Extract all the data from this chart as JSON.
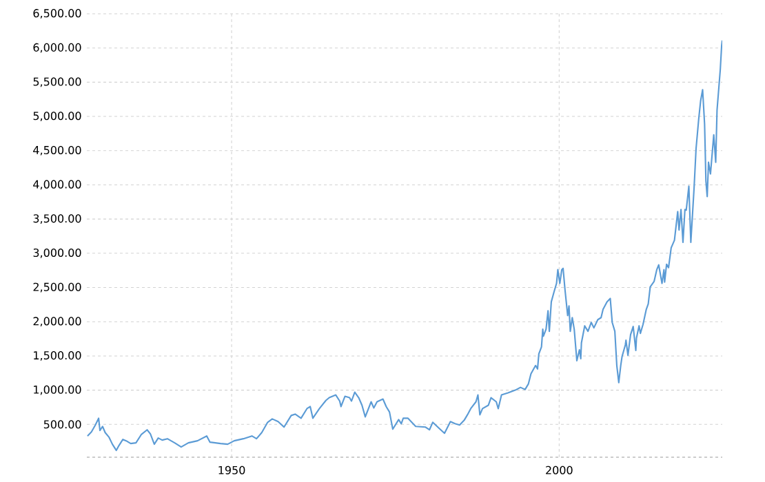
{
  "chart_data": {
    "type": "line",
    "xlim": [
      1927.9,
      2024.9
    ],
    "ylim": [
      20,
      6500
    ],
    "xticks": [
      1950,
      2000
    ],
    "yticks": [
      {
        "value": 500,
        "label": "500.00"
      },
      {
        "value": 1000,
        "label": "1,000.00"
      },
      {
        "value": 1500,
        "label": "1,500.00"
      },
      {
        "value": 2000,
        "label": "2,000.00"
      },
      {
        "value": 2500,
        "label": "2,500.00"
      },
      {
        "value": 3000,
        "label": "3,000.00"
      },
      {
        "value": 3500,
        "label": "3,500.00"
      },
      {
        "value": 4000,
        "label": "4,000.00"
      },
      {
        "value": 4500,
        "label": "4,500.00"
      },
      {
        "value": 5000,
        "label": "5,000.00"
      },
      {
        "value": 5500,
        "label": "5,500.00"
      },
      {
        "value": 6000,
        "label": "6,000.00"
      },
      {
        "value": 6500,
        "label": "6,500.00"
      }
    ],
    "grid": true,
    "marker": "none",
    "line_style": "solid",
    "series": [
      {
        "color": "#5b9bd5",
        "x": [
          1928.0,
          1928.6,
          1929.2,
          1929.7,
          1929.9,
          1930.3,
          1930.7,
          1931.3,
          1931.8,
          1932.4,
          1932.8,
          1933.4,
          1933.9,
          1934.6,
          1935.4,
          1936.2,
          1937.1,
          1937.6,
          1938.2,
          1938.8,
          1939.4,
          1940.2,
          1941.3,
          1942.3,
          1943.4,
          1944.8,
          1946.2,
          1946.7,
          1948.3,
          1949.4,
          1950.4,
          1951.8,
          1953.1,
          1953.8,
          1954.6,
          1955.5,
          1956.2,
          1957.1,
          1958.0,
          1959.1,
          1959.7,
          1960.6,
          1961.5,
          1962.0,
          1962.4,
          1963.4,
          1964.4,
          1964.9,
          1965.9,
          1966.5,
          1966.7,
          1967.3,
          1968.0,
          1968.3,
          1968.8,
          1969.4,
          1969.9,
          1970.4,
          1971.3,
          1971.7,
          1972.2,
          1973.1,
          1973.6,
          1974.1,
          1974.6,
          1975.5,
          1975.9,
          1976.2,
          1976.9,
          1978.1,
          1979.6,
          1980.2,
          1980.7,
          1981.7,
          1982.5,
          1983.4,
          1984.1,
          1984.8,
          1985.5,
          1986.0,
          1986.5,
          1987.3,
          1987.6,
          1987.9,
          1988.3,
          1989.2,
          1989.6,
          1990.4,
          1990.7,
          1991.2,
          1992.2,
          1993.3,
          1994.1,
          1994.8,
          1995.3,
          1995.7,
          1996.4,
          1996.7,
          1996.9,
          1997.3,
          1997.5,
          1997.6,
          1998.0,
          1998.3,
          1998.5,
          1998.8,
          1999.2,
          1999.6,
          1999.8,
          2000.1,
          2000.4,
          2000.6,
          2000.9,
          2001.3,
          2001.5,
          2001.7,
          2002.0,
          2002.3,
          2002.7,
          2003.1,
          2003.3,
          2003.4,
          2003.9,
          2004.4,
          2004.9,
          2005.3,
          2005.9,
          2006.4,
          2006.7,
          2007.3,
          2007.8,
          2008.1,
          2008.5,
          2008.8,
          2009.1,
          2009.4,
          2009.6,
          2010.1,
          2010.2,
          2010.5,
          2010.9,
          2011.3,
          2011.7,
          2011.8,
          2012.2,
          2012.4,
          2012.8,
          2013.3,
          2013.6,
          2013.9,
          2014.5,
          2014.9,
          2015.2,
          2015.7,
          2016.0,
          2016.1,
          2016.4,
          2016.7,
          2017.1,
          2017.6,
          2018.1,
          2018.3,
          2018.6,
          2018.9,
          2019.2,
          2019.4,
          2019.8,
          2020.1,
          2020.6,
          2020.9,
          2021.3,
          2021.6,
          2021.9,
          2022.2,
          2022.3,
          2022.4,
          2022.6,
          2022.8,
          2023.1,
          2023.6,
          2023.9,
          2024.1,
          2024.3,
          2024.6,
          2024.8,
          2024.9
        ],
        "values": [
          330,
          390,
          490,
          590,
          410,
          470,
          380,
          310,
          210,
          120,
          190,
          280,
          260,
          220,
          230,
          350,
          420,
          360,
          210,
          300,
          270,
          290,
          230,
          170,
          230,
          260,
          330,
          240,
          220,
          210,
          260,
          290,
          330,
          290,
          380,
          530,
          580,
          540,
          460,
          630,
          650,
          590,
          730,
          760,
          590,
          730,
          850,
          890,
          930,
          840,
          760,
          910,
          890,
          840,
          970,
          890,
          780,
          610,
          830,
          740,
          830,
          870,
          760,
          680,
          430,
          570,
          510,
          590,
          590,
          470,
          460,
          420,
          530,
          440,
          370,
          540,
          510,
          490,
          560,
          640,
          730,
          830,
          930,
          640,
          730,
          780,
          890,
          830,
          730,
          930,
          960,
          1000,
          1040,
          1010,
          1090,
          1240,
          1360,
          1310,
          1530,
          1630,
          1890,
          1790,
          1890,
          2160,
          1860,
          2290,
          2430,
          2560,
          2760,
          2560,
          2760,
          2780,
          2460,
          2090,
          2230,
          1860,
          2060,
          1890,
          1430,
          1590,
          1460,
          1690,
          1940,
          1860,
          1990,
          1910,
          2030,
          2060,
          2180,
          2290,
          2340,
          1990,
          1860,
          1360,
          1110,
          1360,
          1490,
          1660,
          1730,
          1510,
          1810,
          1930,
          1580,
          1760,
          1940,
          1830,
          1960,
          2180,
          2260,
          2510,
          2590,
          2760,
          2830,
          2560,
          2760,
          2580,
          2840,
          2790,
          3080,
          3190,
          3610,
          3340,
          3640,
          3160,
          3640,
          3630,
          3980,
          3160,
          3960,
          4530,
          4960,
          5230,
          5390,
          4890,
          4490,
          4060,
          3830,
          4330,
          4160,
          4730,
          4330,
          5090,
          5330,
          5690,
          6030,
          6110
        ]
      }
    ]
  }
}
